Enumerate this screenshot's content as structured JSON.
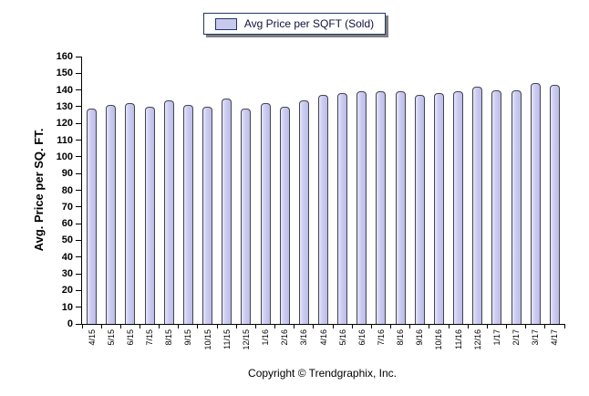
{
  "legend": {
    "label": "Avg Price per SQFT (Sold)"
  },
  "y_axis": {
    "title": "Avg. Price per SQ. FT."
  },
  "footer": {
    "text": "Copyright © Trendgraphix, Inc."
  },
  "chart_data": {
    "type": "bar",
    "title": "Avg Price per SQFT (Sold)",
    "xlabel": "",
    "ylabel": "Avg. Price per SQ. FT.",
    "ylim": [
      0,
      160
    ],
    "ytick_step": 10,
    "grid": false,
    "legend_position": "top-center",
    "categories": [
      "4/15",
      "5/15",
      "6/15",
      "7/15",
      "8/15",
      "9/15",
      "10/15",
      "11/15",
      "12/15",
      "1/16",
      "2/16",
      "3/16",
      "4/16",
      "5/16",
      "6/16",
      "7/16",
      "8/16",
      "9/16",
      "10/16",
      "11/16",
      "12/16",
      "1/17",
      "2/17",
      "3/17",
      "4/17"
    ],
    "series": [
      {
        "name": "Avg Price per SQFT (Sold)",
        "values": [
          129,
          131,
          132,
          130,
          134,
          131,
          130,
          135,
          129,
          132,
          130,
          134,
          137,
          138,
          139,
          139,
          139,
          137,
          138,
          139,
          142,
          140,
          140,
          144,
          143
        ]
      }
    ],
    "colors": {
      "bar_fill": "#c9c9f0",
      "bar_fill_light": "#e4e4fa",
      "bar_border": "#45454e",
      "legend_border": "#1f3864",
      "axis": "#000000",
      "legend_shadow": "#7e7e7e"
    }
  }
}
